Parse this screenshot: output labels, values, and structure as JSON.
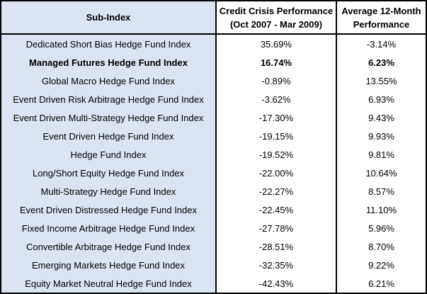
{
  "header": {
    "col1": "Sub-Index",
    "col2_line1": "Credit Crisis Performance",
    "col2_line2": "(Oct 2007 - Mar 2009)",
    "col3_line1": "Average 12-Month",
    "col3_line2": "Performance"
  },
  "colors": {
    "name_column_bg": "#dbe5f1",
    "border": "#000000"
  },
  "rows": [
    {
      "name": "Dedicated Short Bias Hedge Fund Index",
      "crisis": "35.69%",
      "avg12": "-3.14%",
      "bold": false
    },
    {
      "name": "Managed Futures Hedge Fund Index",
      "crisis": "16.74%",
      "avg12": "6.23%",
      "bold": true
    },
    {
      "name": "Global Macro Hedge Fund Index",
      "crisis": "-0.89%",
      "avg12": "13.55%",
      "bold": false
    },
    {
      "name": "Event Driven Risk Arbitrage Hedge Fund Index",
      "crisis": "-3.62%",
      "avg12": "6.93%",
      "bold": false
    },
    {
      "name": "Event Driven Multi-Strategy Hedge Fund Index",
      "crisis": "-17.30%",
      "avg12": "9.43%",
      "bold": false
    },
    {
      "name": "Event Driven Hedge Fund Index",
      "crisis": "-19.15%",
      "avg12": "9.93%",
      "bold": false
    },
    {
      "name": "Hedge Fund Index",
      "crisis": "-19.52%",
      "avg12": "9.81%",
      "bold": false
    },
    {
      "name": "Long/Short Equity Hedge Fund Index",
      "crisis": "-22.00%",
      "avg12": "10.64%",
      "bold": false
    },
    {
      "name": "Multi-Strategy Hedge Fund Index",
      "crisis": "-22.27%",
      "avg12": "8.57%",
      "bold": false
    },
    {
      "name": "Event Driven Distressed Hedge Fund Index",
      "crisis": "-22.45%",
      "avg12": "11.10%",
      "bold": false
    },
    {
      "name": "Fixed Income Arbitrage Hedge Fund Index",
      "crisis": "-27.78%",
      "avg12": "5.96%",
      "bold": false
    },
    {
      "name": "Convertible Arbitrage Hedge Fund Index",
      "crisis": "-28.51%",
      "avg12": "8.70%",
      "bold": false
    },
    {
      "name": "Emerging Markets Hedge Fund Index",
      "crisis": "-32.35%",
      "avg12": "9.22%",
      "bold": false
    },
    {
      "name": "Equity Market Neutral Hedge Fund Index",
      "crisis": "-42.43%",
      "avg12": "6.21%",
      "bold": false
    }
  ]
}
